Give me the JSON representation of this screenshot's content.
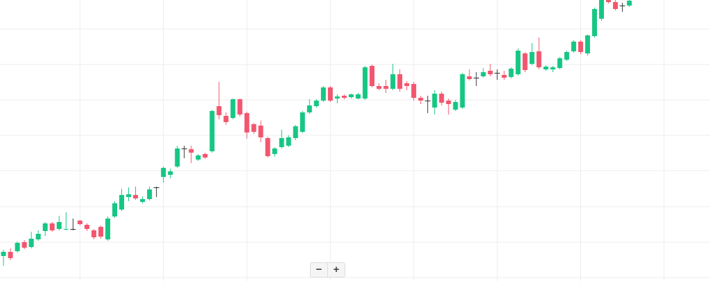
{
  "chart_data": {
    "type": "candlestick",
    "x": [
      0,
      1,
      2,
      3,
      4,
      5,
      6,
      7,
      8,
      9,
      10,
      11,
      12,
      13,
      14,
      15,
      16,
      17,
      18,
      19,
      20,
      21,
      22,
      23,
      24,
      25,
      26,
      27,
      28,
      29,
      30,
      31,
      32,
      33,
      34,
      35,
      36,
      37,
      38,
      39,
      40,
      41,
      42,
      43,
      44,
      45,
      46,
      47,
      48,
      49,
      50,
      51,
      52,
      53,
      54,
      55,
      56,
      57,
      58,
      59,
      60,
      61,
      62,
      63,
      64,
      65,
      66,
      67,
      68,
      69,
      70,
      71,
      72,
      73,
      74,
      75,
      76,
      77,
      78,
      79,
      80,
      81,
      82,
      83,
      84,
      85,
      86,
      87,
      88,
      89,
      90
    ],
    "open": [
      31,
      37,
      38,
      51,
      44,
      55,
      67,
      78,
      70,
      69,
      70,
      82,
      76,
      68,
      73,
      55,
      88,
      98,
      116,
      119,
      109,
      113,
      130,
      145,
      148,
      160,
      186,
      185,
      170,
      178,
      182,
      247,
      233,
      230,
      257,
      237,
      221,
      219,
      201,
      178,
      188,
      190,
      201,
      210,
      238,
      247,
      255,
      274,
      258,
      262,
      260,
      258,
      258,
      305,
      276,
      276,
      272,
      293,
      280,
      279,
      259,
      255,
      245,
      265,
      255,
      242,
      245,
      290,
      288,
      290,
      298,
      295,
      292,
      289,
      293,
      323,
      308,
      326,
      300,
      300,
      302,
      314,
      326,
      340,
      323,
      348,
      373,
      400,
      397,
      392,
      392
    ],
    "high": [
      40,
      42,
      52,
      54,
      66,
      68,
      80,
      80,
      89,
      94,
      85,
      83,
      78,
      70,
      75,
      88,
      110,
      128,
      130,
      131,
      117,
      131,
      131,
      160,
      157,
      190,
      190,
      190,
      178,
      180,
      242,
      282,
      238,
      258,
      258,
      239,
      223,
      226,
      203,
      188,
      213,
      205,
      220,
      240,
      257,
      257,
      276,
      276,
      264,
      264,
      265,
      266,
      305,
      307,
      280,
      285,
      308,
      300,
      283,
      282,
      262,
      262,
      270,
      268,
      258,
      256,
      295,
      300,
      296,
      302,
      308,
      300,
      298,
      303,
      330,
      325,
      338,
      346,
      306,
      305,
      318,
      327,
      342,
      342,
      350,
      389,
      405,
      405,
      400,
      396,
      402
    ],
    "low": [
      17,
      25,
      36,
      41,
      42,
      53,
      60,
      66,
      68,
      68,
      68,
      75,
      67,
      55,
      56,
      53,
      86,
      96,
      110,
      112,
      107,
      111,
      116,
      137,
      143,
      158,
      172,
      165,
      168,
      171,
      180,
      228,
      220,
      228,
      232,
      200,
      207,
      195,
      173,
      174,
      186,
      188,
      198,
      208,
      236,
      245,
      253,
      253,
      251,
      257,
      258,
      257,
      256,
      274,
      270,
      266,
      270,
      268,
      270,
      255,
      250,
      237,
      235,
      248,
      235,
      240,
      243,
      284,
      276,
      288,
      290,
      285,
      285,
      287,
      291,
      296,
      306,
      300,
      298,
      296,
      300,
      312,
      324,
      322,
      320,
      346,
      370,
      395,
      385,
      383,
      390
    ],
    "close": [
      37,
      28,
      50,
      43,
      56,
      63,
      78,
      68,
      80,
      70,
      70,
      77,
      70,
      58,
      59,
      85,
      107,
      119,
      120,
      114,
      113,
      127,
      130,
      158,
      153,
      186,
      186,
      180,
      176,
      173,
      240,
      234,
      224,
      257,
      235,
      209,
      210,
      202,
      175,
      186,
      201,
      202,
      218,
      238,
      248,
      255,
      274,
      255,
      261,
      259,
      264,
      264,
      303,
      276,
      272,
      272,
      293,
      272,
      276,
      259,
      255,
      255,
      265,
      252,
      250,
      253,
      293,
      286,
      288,
      296,
      293,
      295,
      288,
      301,
      327,
      299,
      325,
      303,
      304,
      303,
      316,
      325,
      340,
      325,
      349,
      387,
      405,
      397,
      387,
      392,
      399
    ],
    "up_color": "#16c784",
    "down_color": "#f2566e",
    "flat_color": "#333333",
    "xlim": [
      -0.5,
      101.6
    ],
    "xticks": [
      11,
      23,
      35,
      47,
      59,
      71,
      83,
      95
    ],
    "ylim": [
      -5,
      400
    ],
    "yticks": [
      0,
      51,
      102,
      154,
      205,
      256,
      307,
      358
    ],
    "grid": true
  },
  "controls": {
    "zoom_out": "−",
    "zoom_in": "+"
  }
}
